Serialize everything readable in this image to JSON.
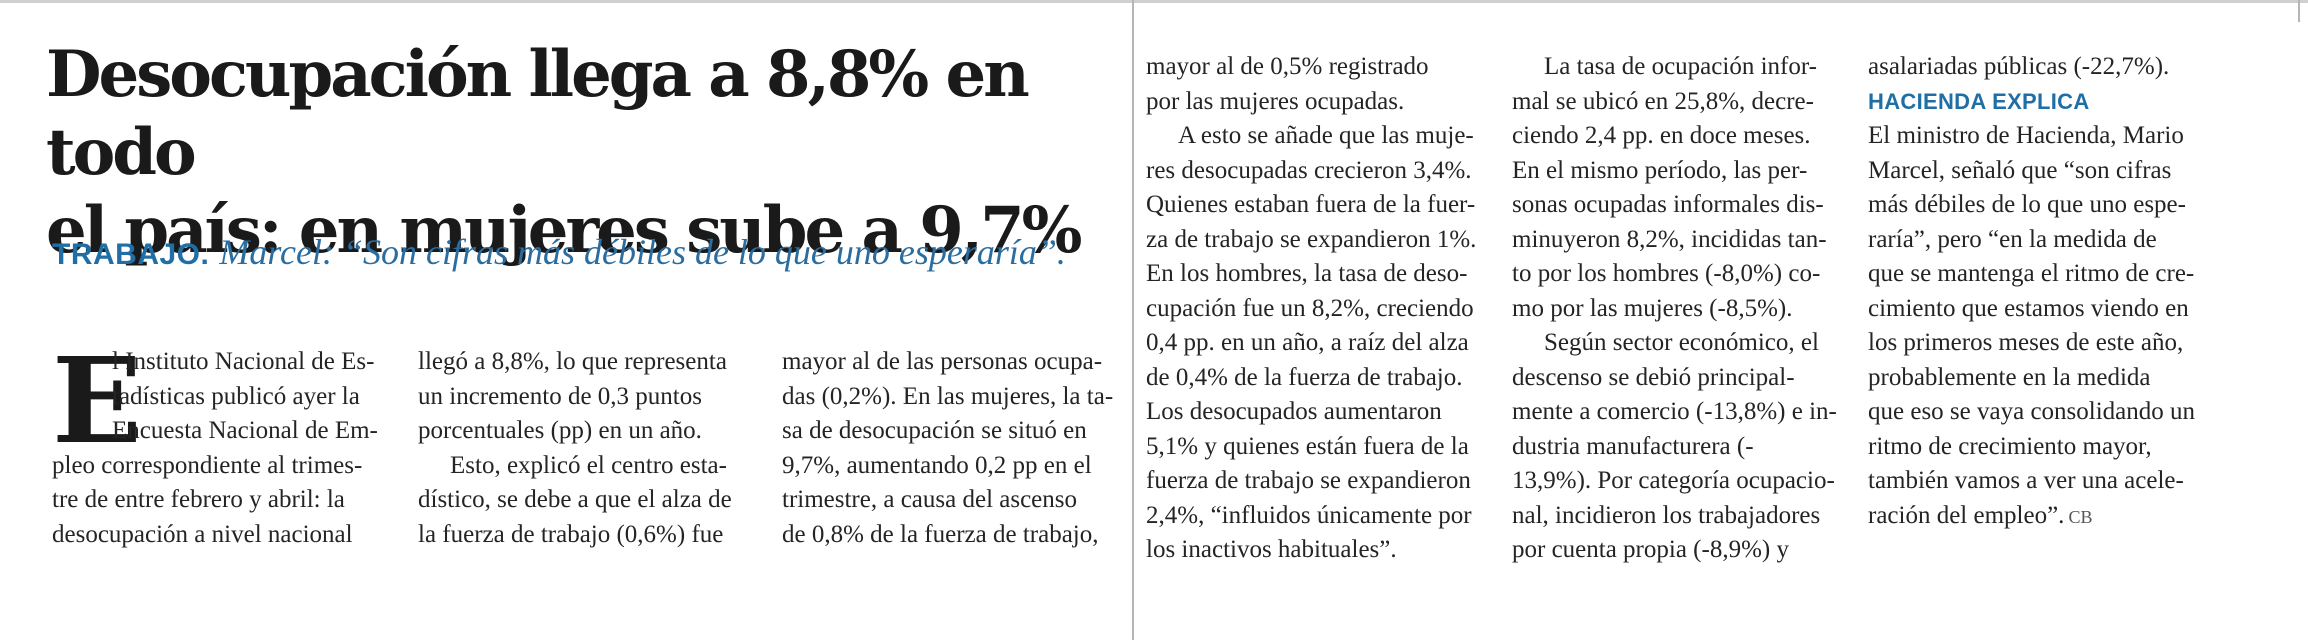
{
  "article": {
    "headline": "Desocupación llega a 8,8% en todo\nel país: en mujeres sube a 9,7%",
    "kicker": "TRABAJO.",
    "deck": "Marcel: “Son cifras más débiles de lo que uno esperaría”.",
    "drop_cap": "E",
    "col1": [
      "l Instituto Nacional de Es-",
      "tadísticas publicó ayer la",
      "Encuesta Nacional de Em-",
      "pleo correspondiente al trimes-",
      "tre de entre febrero y abril: la",
      "desocupación a nivel nacional"
    ],
    "col2": [
      "llegó a 8,8%, lo que representa",
      "un incremento de 0,3 puntos",
      "porcentuales (pp) en un año.",
      "Esto, explicó el centro esta-",
      "dístico, se debe a que el alza de",
      "la fuerza de trabajo (0,6%) fue"
    ],
    "col3": [
      "mayor al de las personas ocupa-",
      "das (0,2%). En las mujeres, la ta-",
      "sa de desocupación se situó en",
      "9,7%, aumentando 0,2 pp en el",
      "trimestre, a causa del ascenso",
      "de 0,8% de la fuerza de trabajo,"
    ],
    "col4": [
      "mayor al de 0,5% registrado",
      "por las mujeres ocupadas.",
      "A esto se añade que las muje-",
      "res desocupadas crecieron 3,4%.",
      "Quienes estaban fuera de la fuer-",
      "za de trabajo se expandieron 1%.",
      "En los hombres, la tasa de deso-",
      "cupación fue un 8,2%, creciendo",
      "0,4 pp. en un año, a raíz del alza",
      "de 0,4% de la fuerza de trabajo.",
      "Los desocupados aumentaron",
      "5,1% y quienes están fuera de la",
      "fuerza de trabajo se expandieron",
      "2,4%, “influidos únicamente por",
      "los inactivos habituales”."
    ],
    "col5": [
      "La tasa de ocupación infor-",
      "mal se ubicó en 25,8%, decre-",
      "ciendo 2,4 pp. en doce meses.",
      "En el mismo período, las per-",
      "sonas ocupadas informales dis-",
      "minuyeron 8,2%, incididas tan-",
      "to por los hombres (-8,0%) co-",
      "mo por las mujeres (-8,5%).",
      "Según sector económico, el",
      "descenso se debió principal-",
      "mente a comercio (-13,8%) e in-",
      "dustria manufacturera (-",
      "13,9%). Por categoría ocupacio-",
      "nal, incidieron los trabajadores",
      "por cuenta propia (-8,9%) y"
    ],
    "col6_intro": "asalariadas públicas (-22,7%).",
    "subhead": "HACIENDA EXPLICA",
    "col6": [
      "El ministro de Hacienda, Mario",
      "Marcel, señaló que “son cifras",
      "más débiles de lo que uno espe-",
      "raría”, pero “en la medida de",
      "que se mantenga el ritmo de cre-",
      "cimiento que estamos viendo en",
      "los primeros meses de este año,",
      "probablemente en la medida",
      "que eso se vaya consolidando un",
      "ritmo de crecimiento mayor,",
      "también vamos a ver una acele-",
      "ración del empleo”."
    ],
    "end_mark": "CB"
  },
  "colors": {
    "accent": "#1f6fa6",
    "text": "#242424",
    "headline": "#1a1a1a"
  }
}
